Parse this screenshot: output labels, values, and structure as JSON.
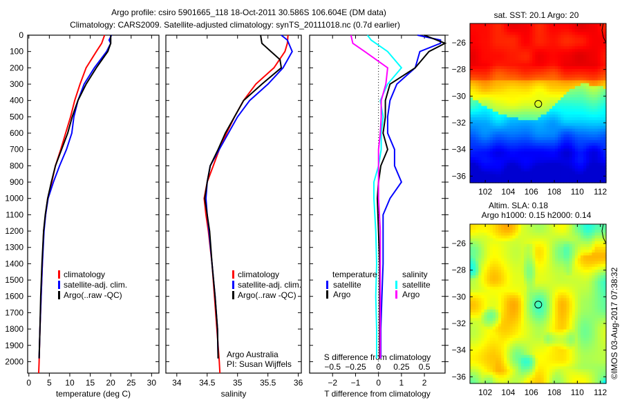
{
  "title_line1": "Argo profile: csiro 5901665_118 18-Oct-2011 30.586S 106.604E (DM data)",
  "title_line2": "Climatology: CARS2009. Satellite-adjusted climatology: synTS_20111018.nc (0.7d earlier)",
  "credit": "©IMOS 03-Aug-2017 07:38:32",
  "colors": {
    "climatology": "#ff0000",
    "satellite": "#0000ff",
    "argo": "#000000",
    "sal_satellite": "#00ffff",
    "sal_argo": "#ff00ff"
  },
  "chart_data": [
    {
      "type": "line",
      "name": "temperature",
      "xlabel": "temperature (deg C)",
      "ylabel": "",
      "xlim": [
        -0.3,
        31.8
      ],
      "ylim": [
        2070,
        0
      ],
      "xticks": [
        0,
        5,
        10,
        15,
        20,
        25,
        30
      ],
      "yticks": [
        0,
        100,
        200,
        300,
        400,
        500,
        600,
        700,
        800,
        900,
        1000,
        1100,
        1200,
        1300,
        1400,
        1500,
        1600,
        1700,
        1800,
        1900,
        2000
      ],
      "legend": [
        "climatology",
        "satellite-adj. clim.",
        "Argo(..raw -QC)"
      ],
      "legend_position": "lower-right",
      "series": [
        {
          "name": "climatology",
          "color": "#ff0000",
          "depth": [
            0,
            50,
            100,
            200,
            300,
            400,
            500,
            600,
            700,
            800,
            900,
            1000,
            1100,
            1200,
            1400,
            1600,
            1800,
            2000,
            2070
          ],
          "values": [
            18.5,
            17.8,
            16.5,
            14,
            12.5,
            11.2,
            10.2,
            9,
            7.8,
            6.5,
            5.6,
            4.6,
            4.1,
            3.6,
            3.3,
            3.0,
            2.7,
            2.5,
            2.4
          ]
        },
        {
          "name": "satellite-adj. clim.",
          "color": "#0000ff",
          "depth": [
            0,
            30,
            50,
            100,
            200,
            300,
            400,
            500,
            600,
            700,
            800,
            900,
            1000,
            1100,
            1200,
            1400,
            1600,
            1800,
            1980
          ],
          "values": [
            20.2,
            19.6,
            20,
            19,
            16,
            13.5,
            12,
            11,
            10.5,
            9.2,
            7.5,
            6,
            4.7,
            4.1,
            3.7,
            3.3,
            3,
            2.7,
            2.5
          ]
        },
        {
          "name": "Argo(..raw -QC)",
          "color": "#000000",
          "depth": [
            0,
            50,
            100,
            200,
            300,
            400,
            500,
            600,
            700,
            800,
            900,
            1000,
            1100,
            1200,
            1400,
            1600,
            1800,
            1980
          ],
          "values": [
            20,
            20,
            19.3,
            16.5,
            14,
            12,
            10.6,
            9.5,
            8,
            6.5,
            5.5,
            4.6,
            4,
            3.6,
            3.2,
            2.9,
            2.7,
            2.5
          ]
        }
      ]
    },
    {
      "type": "line",
      "name": "salinity",
      "xlabel": "salinity",
      "xlim": [
        33.82,
        36.05
      ],
      "ylim": [
        2070,
        0
      ],
      "xticks": [
        34,
        34.5,
        35,
        35.5,
        36
      ],
      "legend": [
        "climatology",
        "satellite-adj. clim.",
        "Argo(..raw -QC)"
      ],
      "legend_position": "lower-right",
      "annotation": [
        "Argo Australia",
        "PI: Susan Wijffels"
      ],
      "series": [
        {
          "name": "climatology",
          "color": "#ff0000",
          "depth": [
            0,
            50,
            100,
            200,
            300,
            400,
            500,
            600,
            700,
            800,
            900,
            1000,
            1100,
            1200,
            1400,
            1600,
            1800,
            2000,
            2070
          ],
          "values": [
            35.83,
            35.82,
            35.78,
            35.6,
            35.3,
            35.1,
            34.95,
            34.82,
            34.7,
            34.6,
            34.5,
            34.45,
            34.48,
            34.52,
            34.58,
            34.62,
            34.66,
            34.7,
            34.71
          ]
        },
        {
          "name": "satellite-adj. clim.",
          "color": "#0000ff",
          "depth": [
            0,
            30,
            100,
            200,
            300,
            400,
            500,
            600,
            700,
            800,
            900,
            1000,
            1100,
            1200,
            1400,
            1600,
            1800,
            1980
          ],
          "values": [
            35.72,
            35.82,
            35.9,
            35.75,
            35.5,
            35.2,
            35,
            34.85,
            34.7,
            34.55,
            34.5,
            34.48,
            34.5,
            34.53,
            34.58,
            34.63,
            34.67,
            34.68
          ]
        },
        {
          "name": "Argo(..raw -QC)",
          "color": "#000000",
          "depth": [
            0,
            50,
            100,
            150,
            200,
            300,
            400,
            500,
            600,
            700,
            800,
            900,
            1000,
            1100,
            1200,
            1400,
            1600,
            1800,
            1980
          ],
          "values": [
            35.38,
            35.4,
            35.55,
            35.7,
            35.72,
            35.4,
            35.1,
            34.95,
            34.8,
            34.68,
            34.55,
            34.5,
            34.46,
            34.5,
            34.54,
            34.58,
            34.63,
            34.67,
            34.68
          ]
        }
      ]
    },
    {
      "type": "line",
      "name": "differences",
      "xlabel": "T difference from climatology",
      "x2label": "S difference from climatology",
      "xlim": [
        -3,
        2.9
      ],
      "ylim": [
        2070,
        0
      ],
      "xticks": [
        -2,
        -1,
        0,
        1,
        2
      ],
      "x2ticks": [
        "-0.5",
        "-0.25",
        "0",
        "0.25",
        "0.5"
      ],
      "legend_temperature_title": "temperature",
      "legend_salinity_title": "salinity",
      "legend_labels": {
        "satellite": "satellite",
        "argo": "Argo"
      },
      "series": [
        {
          "name": "T satellite",
          "color": "#0000ff",
          "units": "T",
          "depth": [
            0,
            30,
            50,
            100,
            200,
            300,
            400,
            500,
            600,
            700,
            800,
            900,
            1000,
            1100,
            1200,
            1400,
            1600,
            1800,
            1980
          ],
          "values": [
            1.7,
            2.7,
            2.7,
            1.8,
            1.6,
            0.8,
            0.5,
            0.4,
            0.4,
            0.7,
            0.7,
            1,
            0.5,
            0.2,
            0.2,
            0.2,
            0.15,
            0.1,
            0.1
          ]
        },
        {
          "name": "T Argo",
          "color": "#000000",
          "units": "T",
          "depth": [
            0,
            50,
            100,
            200,
            300,
            400,
            500,
            600,
            700,
            800,
            900,
            1000,
            1200,
            1400,
            1600,
            1800,
            1980
          ],
          "values": [
            2.0,
            2.9,
            2.2,
            1.6,
            0.5,
            0.3,
            0.3,
            0.2,
            0.4,
            0.1,
            0,
            -0.05,
            0,
            0.05,
            0.05,
            0.05,
            0.05
          ]
        },
        {
          "name": "S satellite",
          "color": "#00ffff",
          "units": "S",
          "depth": [
            0,
            30,
            100,
            200,
            300,
            400,
            500,
            600,
            700,
            800,
            900,
            1000,
            1200,
            1400,
            1600,
            1800,
            1980
          ],
          "values": [
            -0.12,
            -0.08,
            0.1,
            0.25,
            0.1,
            0.02,
            0.05,
            0.03,
            0.03,
            0,
            -0.05,
            -0.05,
            -0.03,
            -0.02,
            -0.03,
            -0.02,
            -0.02
          ]
        },
        {
          "name": "S Argo",
          "color": "#ff00ff",
          "units": "S",
          "depth": [
            0,
            50,
            100,
            200,
            300,
            400,
            500,
            600,
            700,
            800,
            900,
            1000,
            1200,
            1400,
            1600,
            1800,
            1980
          ],
          "values": [
            -0.3,
            -0.28,
            -0.15,
            0.1,
            0.08,
            0.03,
            0.03,
            0.02,
            0,
            0,
            0,
            0,
            0.02,
            0.02,
            0.02,
            0.02,
            0.02
          ]
        }
      ]
    },
    {
      "type": "heatmap",
      "name": "sst-map",
      "title": "sat. SST: 20.1 Argo: 20",
      "xlim": [
        100.67,
        112.5
      ],
      "ylim": [
        -36.5,
        -24.55
      ],
      "xticks": [
        102,
        104,
        106,
        108,
        110,
        112
      ],
      "yticks": [
        -26,
        -28,
        -30,
        -32,
        -34,
        -36
      ],
      "marker": {
        "lon": 106.604,
        "lat": -30.586
      }
    },
    {
      "type": "heatmap",
      "name": "sla-map",
      "title_line1": "Altim. SLA: 0.18",
      "title_line2": "Argo h1000: 0.15 h2000: 0.14",
      "xlim": [
        100.67,
        112.5
      ],
      "ylim": [
        -36.5,
        -24.55
      ],
      "xticks": [
        102,
        104,
        106,
        108,
        110,
        112
      ],
      "yticks": [
        -26,
        -28,
        -30,
        -32,
        -34,
        -36
      ],
      "marker": {
        "lon": 106.604,
        "lat": -30.586
      }
    }
  ]
}
